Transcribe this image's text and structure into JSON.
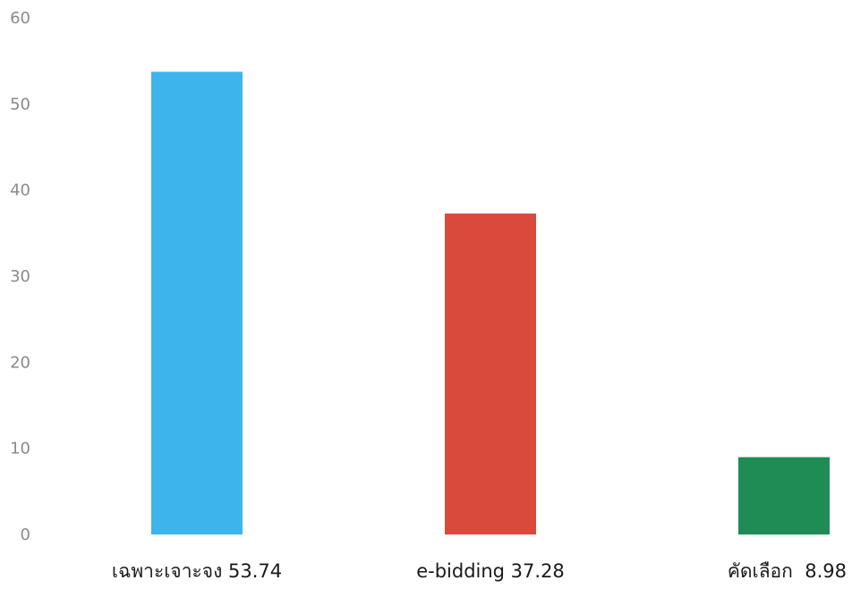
{
  "chart_data": {
    "type": "bar",
    "title": "",
    "xlabel": "",
    "ylabel": "",
    "ylim": [
      0,
      60
    ],
    "yticks": [
      0,
      10,
      20,
      30,
      40,
      50,
      60
    ],
    "grid": false,
    "legend": "none",
    "categories": [
      "เฉพาะเจาะจง 53.74",
      "e-bidding 37.28",
      "คัดเลือก  8.98"
    ],
    "values": [
      53.74,
      37.28,
      8.98
    ],
    "colors": [
      "#3db5ec",
      "#d94a3c",
      "#1f8c55"
    ]
  }
}
